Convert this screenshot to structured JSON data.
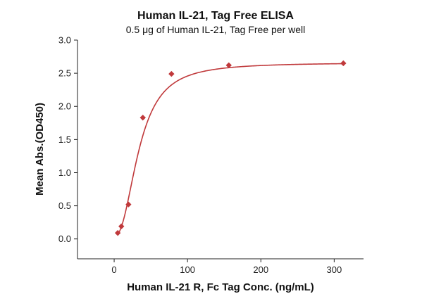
{
  "chart_data": {
    "type": "scatter",
    "title": "Human IL-21, Tag Free ELISA",
    "subtitle": "0.5 μg of Human IL-21, Tag Free per well",
    "xlabel": "Human IL-21 R, Fc Tag Conc. (ng/mL)",
    "ylabel": "Mean Abs.(OD450)",
    "xlim": [
      -50,
      340
    ],
    "ylim": [
      -0.3,
      3.0
    ],
    "x_ticks": [
      0,
      100,
      200,
      300
    ],
    "y_ticks": [
      0.0,
      0.5,
      1.0,
      1.5,
      2.0,
      2.5,
      3.0
    ],
    "x_tick_labels": [
      "0",
      "100",
      "200",
      "300"
    ],
    "y_tick_labels": [
      "0.0",
      "0.5",
      "1.0",
      "1.5",
      "2.0",
      "2.5",
      "3.0"
    ],
    "grid": false,
    "series": [
      {
        "x": [
          4.9,
          9.8,
          19.5,
          39.1,
          78.1,
          156.3,
          312.5
        ],
        "y": [
          0.09,
          0.19,
          0.52,
          1.83,
          2.49,
          2.62,
          2.65
        ],
        "color": "#c0393b",
        "marker": "diamond"
      }
    ],
    "fit_curve": {
      "type": "4PL",
      "bottom": 0.04,
      "top": 2.66,
      "ec50": 34,
      "hill": 2.3,
      "color": "#c0393b"
    }
  }
}
